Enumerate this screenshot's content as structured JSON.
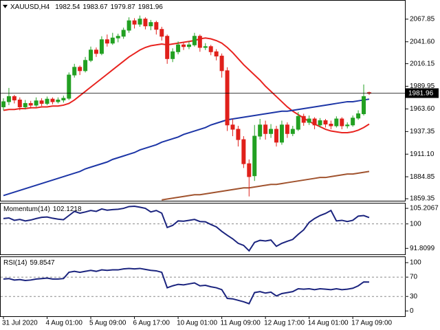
{
  "chart_data": [
    {
      "type": "candlestick",
      "title": "XAUUSD,H4",
      "categories": [
        "31 Jul 2020",
        null,
        null,
        null,
        null,
        null,
        null,
        null,
        "4 Aug 01:00",
        null,
        null,
        null,
        null,
        null,
        null,
        null,
        "5 Aug 09:00",
        null,
        null,
        null,
        null,
        null,
        null,
        null,
        "6 Aug 17:00",
        null,
        null,
        null,
        null,
        null,
        null,
        null,
        "10 Aug 01:00",
        null,
        null,
        null,
        null,
        null,
        null,
        null,
        "11 Aug 09:00",
        null,
        null,
        null,
        null,
        null,
        null,
        null,
        "12 Aug 17:00",
        null,
        null,
        null,
        null,
        null,
        null,
        null,
        "14 Aug 01:00",
        null,
        null,
        null,
        null,
        null,
        null,
        null,
        "17 Aug 09:00",
        null,
        null,
        null
      ],
      "open": [
        1966,
        1972,
        1978,
        1974,
        1966,
        1970,
        1968,
        1973,
        1970,
        1975,
        1972,
        1974,
        1976,
        2003,
        2012,
        2008,
        2020,
        2032,
        2028,
        2044,
        2040,
        2046,
        2048,
        2055,
        2066,
        2062,
        2068,
        2060,
        2064,
        2056,
        2048,
        2022,
        2030,
        2038,
        2036,
        2038,
        2048,
        2035,
        2036,
        2030,
        2025,
        2008,
        1945,
        1940,
        1928,
        1900,
        1886,
        1932,
        1945,
        1935,
        1940,
        1925,
        1945,
        1935,
        1940,
        1955,
        1948,
        1952,
        1945,
        1950,
        1946,
        1944,
        1952,
        1944,
        1945,
        1953,
        1958,
        1982.54
      ],
      "high": [
        1976,
        1988,
        1980,
        1977,
        1974,
        1973,
        1977,
        1976,
        1978,
        1977,
        1977,
        1979,
        2006,
        2016,
        2014,
        2024,
        2036,
        2035,
        2048,
        2050,
        2052,
        2051,
        2058,
        2070,
        2069,
        2072,
        2070,
        2067,
        2066,
        2059,
        2050,
        2034,
        2042,
        2041,
        2042,
        2052,
        2050,
        2040,
        2038,
        2033,
        2028,
        2012,
        1952,
        1944,
        1932,
        1905,
        1945,
        1952,
        1950,
        1946,
        1944,
        1950,
        1948,
        1944,
        1960,
        1958,
        1956,
        1954,
        1953,
        1952,
        1950,
        1955,
        1954,
        1948,
        1956,
        1962,
        1992,
        1983.67
      ],
      "low": [
        1962,
        1968,
        1970,
        1962,
        1963,
        1964,
        1966,
        1967,
        1968,
        1969,
        1970,
        1971,
        1974,
        2000,
        2003,
        2006,
        2018,
        2024,
        2026,
        2036,
        2038,
        2041,
        2045,
        2052,
        2057,
        2059,
        2056,
        2055,
        2050,
        2043,
        2016,
        2018,
        2027,
        2032,
        2033,
        2036,
        2030,
        2032,
        2026,
        2020,
        2000,
        1938,
        1932,
        1920,
        1895,
        1862,
        1880,
        1928,
        1928,
        1930,
        1920,
        1922,
        1930,
        1932,
        1938,
        1944,
        1945,
        1940,
        1942,
        1942,
        1940,
        1942,
        1940,
        1941,
        1943,
        1951,
        1956,
        1979.87
      ],
      "close": [
        1972,
        1978,
        1974,
        1966,
        1970,
        1968,
        1973,
        1970,
        1975,
        1972,
        1974,
        1976,
        2003,
        2012,
        2008,
        2020,
        2032,
        2028,
        2044,
        2040,
        2046,
        2048,
        2055,
        2066,
        2062,
        2068,
        2060,
        2064,
        2056,
        2048,
        2022,
        2030,
        2038,
        2036,
        2038,
        2048,
        2035,
        2036,
        2030,
        2025,
        2008,
        1945,
        1940,
        1928,
        1900,
        1885,
        1932,
        1945,
        1935,
        1940,
        1925,
        1945,
        1935,
        1940,
        1955,
        1948,
        1952,
        1945,
        1950,
        1946,
        1944,
        1952,
        1944,
        1945,
        1953,
        1958,
        1978,
        1981.96
      ],
      "up_color": "#22a022",
      "down_color": "#e0201b",
      "series": [
        {
          "color": "#e8231f",
          "values": [
            1962,
            1963,
            1963,
            1964,
            1964,
            1965,
            1965,
            1966,
            1966,
            1967,
            1967,
            1968,
            1970,
            1974,
            1979,
            1984,
            1989,
            1994,
            1999,
            2004,
            2009,
            2014,
            2019,
            2024,
            2028,
            2032,
            2035,
            2037,
            2038,
            2039,
            2038,
            2039,
            2040,
            2041,
            2042,
            2043,
            2045,
            2046,
            2045,
            2043,
            2040,
            2035,
            2029,
            2022,
            2015,
            2009,
            2003,
            1997,
            1990,
            1984,
            1978,
            1972,
            1966,
            1961,
            1957,
            1953,
            1949,
            1946,
            1943,
            1940,
            1938,
            1937,
            1936,
            1936,
            1937,
            1939,
            1942,
            1946
          ]
        },
        {
          "color": "#1c35a6",
          "values": [
            1863,
            1865,
            1867,
            1869,
            1871,
            1873,
            1875,
            1877,
            1879,
            1881,
            1883,
            1885,
            1887,
            1889,
            1891,
            1894,
            1896,
            1898,
            1900,
            1902,
            1905,
            1907,
            1909,
            1911,
            1913,
            1916,
            1918,
            1920,
            1922,
            1925,
            1927,
            1929,
            1931,
            1934,
            1936,
            1938,
            1940,
            1942,
            1945,
            1947,
            1949,
            1951,
            1952,
            1953,
            1954,
            1955,
            1956,
            1957,
            1958,
            1959,
            1960,
            1961,
            1961,
            1962,
            1963,
            1964,
            1965,
            1966,
            1967,
            1968,
            1969,
            1970,
            1971,
            1972,
            1972,
            1973,
            1974,
            1975
          ]
        },
        {
          "color": "#a0522d",
          "values": [
            null,
            null,
            null,
            null,
            null,
            null,
            null,
            null,
            null,
            null,
            null,
            null,
            null,
            null,
            null,
            null,
            null,
            null,
            null,
            null,
            null,
            null,
            null,
            null,
            null,
            null,
            null,
            null,
            null,
            1858,
            1859,
            1860,
            1861,
            1862,
            1863,
            1864,
            1864,
            1865,
            1866,
            1867,
            1868,
            1869,
            1870,
            1871,
            1872,
            1872,
            1873,
            1874,
            1875,
            1876,
            1876,
            1877,
            1878,
            1879,
            1880,
            1881,
            1882,
            1883,
            1884,
            1884,
            1885,
            1886,
            1887,
            1888,
            1888,
            1889,
            1890,
            1891
          ]
        }
      ],
      "ylim": [
        1857,
        2088.5
      ],
      "yticks": [
        2067.85,
        {
          "value": 2041.6,
          "label": "2041.60"
        },
        2016.15,
        1989.95,
        {
          "value": 1963.6,
          "label": "1963.60"
        },
        1937.35,
        {
          "value": 1911.1,
          "label": "1911.10"
        },
        1884.85,
        1859.35
      ]
    },
    {
      "type": "line",
      "title": "Momentum(14)",
      "series": [
        {
          "color": "#1a237e",
          "values": [
            101.8,
            102.0,
            101.2,
            101.5,
            101.0,
            101.3,
            101.8,
            102.2,
            102.3,
            101.9,
            101.6,
            101.4,
            102.8,
            104.2,
            103.6,
            104.0,
            104.5,
            104.2,
            105.0,
            104.6,
            104.8,
            104.9,
            105.2,
            105.8,
            105.9,
            105.6,
            105.2,
            104.0,
            104.5,
            103.6,
            98.8,
            99.5,
            101.0,
            100.9,
            101.2,
            101.5,
            100.8,
            100.7,
            99.8,
            99.0,
            97.5,
            96.2,
            95.0,
            93.5,
            92.8,
            91.0,
            93.8,
            94.5,
            94.3,
            94.6,
            92.5,
            93.5,
            94.2,
            94.8,
            96.5,
            98.0,
            100.5,
            101.8,
            102.8,
            103.5,
            104.5,
            101.0,
            101.2,
            100.8,
            101.2,
            102.6,
            102.8,
            102.1218
          ]
        }
      ],
      "ylim": [
        89.8,
        106.6
      ],
      "yticks": [
        105.2067,
        100,
        91.8099
      ],
      "levels": [
        100
      ]
    },
    {
      "type": "line",
      "title": "RSI(14)",
      "series": [
        {
          "color": "#1a237e",
          "values": [
            66,
            67,
            64,
            65,
            63,
            64,
            66,
            67,
            68,
            66,
            66,
            67,
            80,
            82,
            80,
            82,
            84,
            82,
            85,
            84,
            85,
            85,
            87,
            88,
            87,
            88,
            86,
            84,
            83,
            80,
            48,
            52,
            55,
            54,
            56,
            58,
            52,
            53,
            50,
            48,
            44,
            26,
            25,
            22,
            19,
            15,
            38,
            40,
            37,
            39,
            31,
            36,
            38,
            40,
            46,
            45,
            46,
            44,
            46,
            45,
            44,
            46,
            44,
            45,
            47,
            52,
            60,
            59.8547
          ]
        }
      ],
      "ylim": [
        -11,
        110
      ],
      "yticks": [
        100,
        70,
        30,
        0
      ],
      "levels": [
        70,
        30
      ]
    }
  ]
}
